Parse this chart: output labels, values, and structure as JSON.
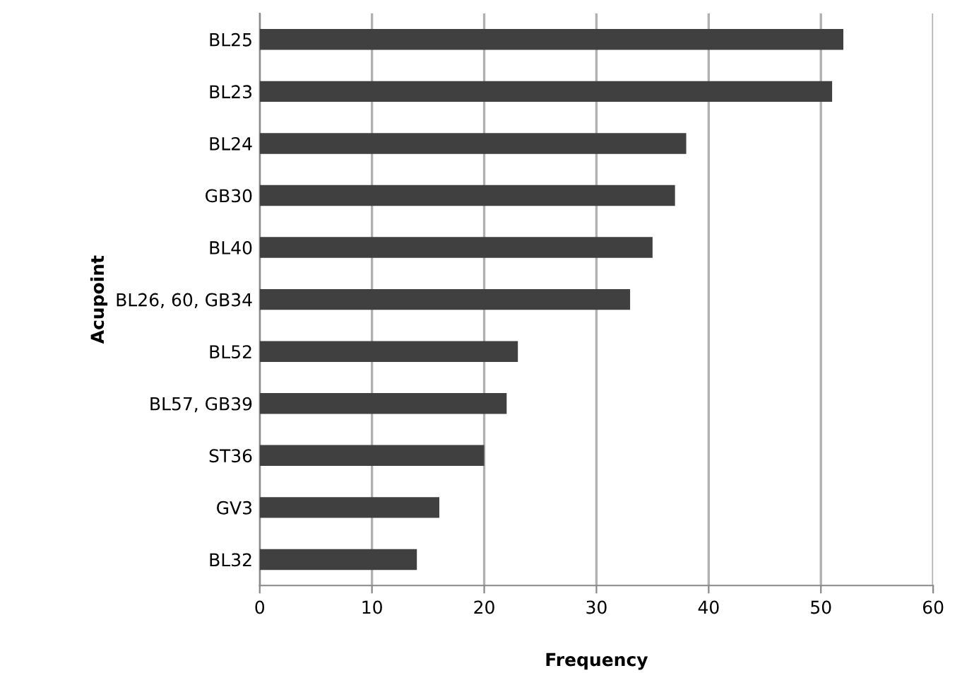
{
  "chart_data": {
    "type": "bar",
    "orientation": "horizontal",
    "xlabel": "Frequency",
    "ylabel": "Acupoint",
    "categories": [
      "BL25",
      "BL23",
      "BL24",
      "GB30",
      "BL40",
      "BL26, 60, GB34",
      "BL52",
      "BL57, GB39",
      "ST36",
      "GV3",
      "BL32"
    ],
    "values": [
      52,
      51,
      38,
      37,
      35,
      33,
      23,
      22,
      20,
      16,
      14
    ],
    "color": "#404040",
    "xlim": [
      0,
      60
    ],
    "xticks": [
      0,
      10,
      20,
      30,
      40,
      50,
      60
    ],
    "grid": "x",
    "legend": false
  }
}
